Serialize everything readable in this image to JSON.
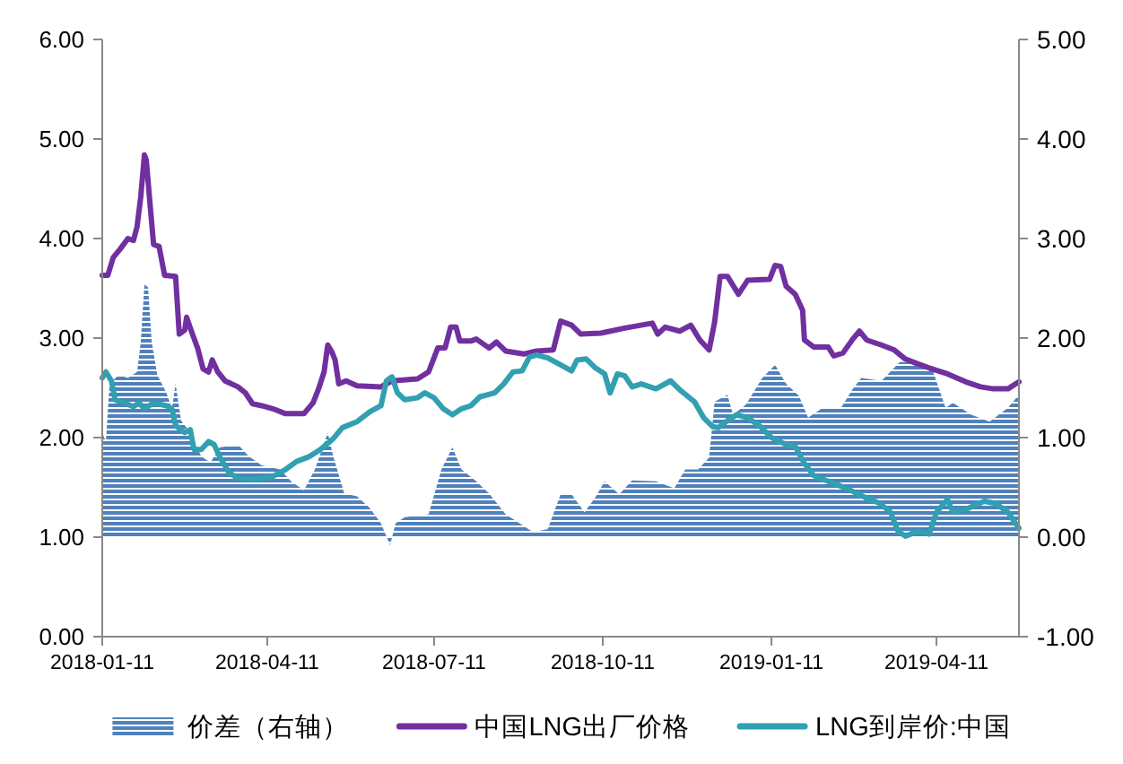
{
  "chart_data": {
    "type": "line",
    "legend": "bottom",
    "xlim": [
      "2018-01-11",
      "2019-05-26"
    ],
    "xticks": [
      "2018-01-11",
      "2018-04-11",
      "2018-07-11",
      "2018-10-11",
      "2019-01-11",
      "2019-04-11"
    ],
    "ylim": [
      0,
      6
    ],
    "yticks": [
      {
        "value": 0,
        "label": "0.00"
      },
      {
        "value": 1,
        "label": "1.00"
      },
      {
        "value": 2,
        "label": "2.00"
      },
      {
        "value": 3,
        "label": "3.00"
      },
      {
        "value": 4,
        "label": "4.00"
      },
      {
        "value": 5,
        "label": "5.00"
      },
      {
        "value": 6,
        "label": "6.00"
      }
    ],
    "y2lim": [
      -1,
      5
    ],
    "y2ticks": [
      {
        "value": -1,
        "label": "-1.00"
      },
      {
        "value": 0,
        "label": "0.00"
      },
      {
        "value": 1,
        "label": "1.00"
      },
      {
        "value": 2,
        "label": "2.00"
      },
      {
        "value": 3,
        "label": "3.00"
      },
      {
        "value": 4,
        "label": "4.00"
      },
      {
        "value": 5,
        "label": "5.00"
      }
    ],
    "series": [
      {
        "name": "价差（右轴）",
        "type": "area",
        "axis": "y2",
        "color": "#4f81bd",
        "x": [
          "2018-01-11",
          "2018-01-13",
          "2018-01-15",
          "2018-01-20",
          "2018-01-25",
          "2018-01-30",
          "2018-02-01",
          "2018-02-03",
          "2018-02-05",
          "2018-02-07",
          "2018-02-10",
          "2018-02-15",
          "2018-02-18",
          "2018-02-20",
          "2018-02-23",
          "2018-02-28",
          "2018-03-06",
          "2018-03-11",
          "2018-03-16",
          "2018-03-26",
          "2018-04-01",
          "2018-04-08",
          "2018-04-18",
          "2018-04-24",
          "2018-05-01",
          "2018-05-07",
          "2018-05-14",
          "2018-05-17",
          "2018-05-23",
          "2018-05-30",
          "2018-06-06",
          "2018-06-12",
          "2018-06-17",
          "2018-06-20",
          "2018-06-25",
          "2018-07-08",
          "2018-07-15",
          "2018-07-21",
          "2018-07-26",
          "2018-08-03",
          "2018-08-10",
          "2018-08-19",
          "2018-08-29",
          "2018-09-03",
          "2018-09-11",
          "2018-09-18",
          "2018-09-24",
          "2018-10-01",
          "2018-10-07",
          "2018-10-12",
          "2018-10-20",
          "2018-10-27",
          "2018-11-09",
          "2018-11-19",
          "2018-11-25",
          "2018-12-02",
          "2018-12-08",
          "2018-12-11",
          "2018-12-18",
          "2018-12-21",
          "2018-12-28",
          "2019-01-06",
          "2019-01-13",
          "2019-01-19",
          "2019-01-26",
          "2019-01-31",
          "2019-02-08",
          "2019-02-18",
          "2019-02-24",
          "2019-03-01",
          "2019-03-12",
          "2019-03-22",
          "2019-04-01",
          "2019-04-09",
          "2019-04-16",
          "2019-04-20",
          "2019-04-30",
          "2019-05-10",
          "2019-05-20",
          "2019-05-26"
        ],
        "values": [
          1.05,
          0.96,
          1.54,
          1.63,
          1.6,
          1.66,
          1.96,
          2.54,
          2.51,
          1.96,
          1.63,
          1.45,
          1.29,
          1.54,
          1.17,
          1.05,
          0.81,
          0.75,
          0.9,
          0.93,
          0.81,
          0.72,
          0.68,
          0.56,
          0.47,
          0.68,
          1.05,
          0.81,
          0.44,
          0.41,
          0.29,
          0.14,
          -0.08,
          0.14,
          0.2,
          0.23,
          0.68,
          0.9,
          0.68,
          0.56,
          0.44,
          0.23,
          0.11,
          0.05,
          0.08,
          0.43,
          0.43,
          0.25,
          0.4,
          0.56,
          0.43,
          0.57,
          0.56,
          0.49,
          0.68,
          0.68,
          0.8,
          1.36,
          1.43,
          1.23,
          1.33,
          1.6,
          1.73,
          1.54,
          1.42,
          1.2,
          1.3,
          1.3,
          1.48,
          1.6,
          1.57,
          1.76,
          1.76,
          1.67,
          1.3,
          1.35,
          1.23,
          1.16,
          1.3,
          1.43
        ]
      },
      {
        "name": "中国LNG出厂价格",
        "color": "#7030a0",
        "x": [
          "2018-01-11",
          "2018-01-14",
          "2018-01-17",
          "2018-01-21",
          "2018-01-25",
          "2018-01-28",
          "2018-01-30",
          "2018-02-01",
          "2018-02-03",
          "2018-02-04",
          "2018-02-06",
          "2018-02-08",
          "2018-02-11",
          "2018-02-14",
          "2018-02-20",
          "2018-02-22",
          "2018-02-25",
          "2018-02-26",
          "2018-03-01",
          "2018-03-04",
          "2018-03-07",
          "2018-03-10",
          "2018-03-12",
          "2018-03-15",
          "2018-03-19",
          "2018-03-26",
          "2018-03-30",
          "2018-04-03",
          "2018-04-08",
          "2018-04-14",
          "2018-04-21",
          "2018-05-01",
          "2018-05-06",
          "2018-05-09",
          "2018-05-12",
          "2018-05-14",
          "2018-05-16",
          "2018-05-18",
          "2018-05-20",
          "2018-05-24",
          "2018-05-30",
          "2018-06-12",
          "2018-06-18",
          "2018-07-02",
          "2018-07-08",
          "2018-07-13",
          "2018-07-17",
          "2018-07-20",
          "2018-07-23",
          "2018-07-25",
          "2018-07-31",
          "2018-08-03",
          "2018-08-10",
          "2018-08-14",
          "2018-08-19",
          "2018-08-29",
          "2018-09-05",
          "2018-09-14",
          "2018-09-18",
          "2018-09-24",
          "2018-09-29",
          "2018-10-10",
          "2018-10-23",
          "2018-11-07",
          "2018-11-10",
          "2018-11-14",
          "2018-11-22",
          "2018-11-28",
          "2018-12-03",
          "2018-12-08",
          "2018-12-11",
          "2018-12-14",
          "2018-12-18",
          "2018-12-24",
          "2018-12-29",
          "2019-01-10",
          "2019-01-13",
          "2019-01-16",
          "2019-01-19",
          "2019-01-24",
          "2019-01-28",
          "2019-01-29",
          "2019-02-03",
          "2019-02-11",
          "2019-02-14",
          "2019-02-19",
          "2019-02-24",
          "2019-02-28",
          "2019-03-04",
          "2019-03-12",
          "2019-03-19",
          "2019-03-25",
          "2019-04-01",
          "2019-04-07",
          "2019-04-17",
          "2019-04-27",
          "2019-05-05",
          "2019-05-12",
          "2019-05-20",
          "2019-05-26"
        ],
        "values": [
          3.63,
          3.63,
          3.81,
          3.9,
          4.0,
          3.98,
          4.12,
          4.42,
          4.84,
          4.79,
          4.36,
          3.94,
          3.92,
          3.63,
          3.62,
          3.04,
          3.08,
          3.21,
          3.05,
          2.9,
          2.69,
          2.66,
          2.78,
          2.66,
          2.57,
          2.51,
          2.45,
          2.34,
          2.32,
          2.29,
          2.24,
          2.24,
          2.35,
          2.49,
          2.66,
          2.93,
          2.87,
          2.78,
          2.54,
          2.57,
          2.52,
          2.51,
          2.57,
          2.59,
          2.66,
          2.9,
          2.9,
          3.11,
          3.11,
          2.97,
          2.97,
          2.99,
          2.9,
          2.96,
          2.87,
          2.84,
          2.87,
          2.88,
          3.17,
          3.13,
          3.04,
          3.05,
          3.1,
          3.15,
          3.04,
          3.11,
          3.07,
          3.13,
          2.98,
          2.88,
          3.16,
          3.62,
          3.62,
          3.44,
          3.58,
          3.59,
          3.73,
          3.72,
          3.52,
          3.44,
          3.28,
          2.98,
          2.91,
          2.91,
          2.82,
          2.85,
          2.98,
          3.07,
          2.98,
          2.93,
          2.88,
          2.79,
          2.74,
          2.7,
          2.64,
          2.56,
          2.51,
          2.49,
          2.49,
          2.56
        ]
      },
      {
        "name": "LNG到岸价:中国",
        "color": "#31a0b0",
        "x": [
          "2018-01-11",
          "2018-01-13",
          "2018-01-16",
          "2018-01-18",
          "2018-01-23",
          "2018-01-28",
          "2018-01-31",
          "2018-02-03",
          "2018-02-08",
          "2018-02-15",
          "2018-02-18",
          "2018-02-20",
          "2018-02-25",
          "2018-02-28",
          "2018-03-02",
          "2018-03-06",
          "2018-03-10",
          "2018-03-13",
          "2018-03-16",
          "2018-03-21",
          "2018-03-26",
          "2018-04-01",
          "2018-04-08",
          "2018-04-14",
          "2018-04-21",
          "2018-04-27",
          "2018-05-04",
          "2018-05-10",
          "2018-05-17",
          "2018-05-22",
          "2018-05-30",
          "2018-06-06",
          "2018-06-12",
          "2018-06-15",
          "2018-06-18",
          "2018-06-21",
          "2018-06-25",
          "2018-07-02",
          "2018-07-06",
          "2018-07-11",
          "2018-07-16",
          "2018-07-21",
          "2018-07-26",
          "2018-07-31",
          "2018-08-05",
          "2018-08-13",
          "2018-08-18",
          "2018-08-23",
          "2018-08-28",
          "2018-09-01",
          "2018-09-05",
          "2018-09-11",
          "2018-09-18",
          "2018-09-24",
          "2018-09-27",
          "2018-10-02",
          "2018-10-07",
          "2018-10-12",
          "2018-10-15",
          "2018-10-19",
          "2018-10-23",
          "2018-10-27",
          "2018-11-01",
          "2018-11-09",
          "2018-11-17",
          "2018-11-22",
          "2018-11-30",
          "2018-12-05",
          "2018-12-10",
          "2018-12-13",
          "2018-12-18",
          "2018-12-23",
          "2018-12-29",
          "2019-01-05",
          "2019-01-11",
          "2019-01-19",
          "2019-01-24",
          "2019-01-29",
          "2019-02-03",
          "2019-02-11",
          "2019-02-21",
          "2019-03-03",
          "2019-03-11",
          "2019-03-17",
          "2019-03-21",
          "2019-03-25",
          "2019-04-01",
          "2019-04-07",
          "2019-04-11",
          "2019-04-17",
          "2019-04-20",
          "2019-04-27",
          "2019-05-07",
          "2019-05-13",
          "2019-05-20",
          "2019-05-26"
        ],
        "values": [
          2.6,
          2.66,
          2.57,
          2.38,
          2.35,
          2.31,
          2.35,
          2.29,
          2.35,
          2.32,
          2.29,
          2.12,
          2.05,
          2.08,
          1.88,
          1.88,
          1.96,
          1.93,
          1.81,
          1.65,
          1.59,
          1.58,
          1.59,
          1.61,
          1.68,
          1.76,
          1.81,
          1.88,
          1.99,
          2.1,
          2.16,
          2.26,
          2.32,
          2.57,
          2.61,
          2.45,
          2.38,
          2.4,
          2.45,
          2.4,
          2.29,
          2.23,
          2.29,
          2.32,
          2.41,
          2.45,
          2.54,
          2.66,
          2.67,
          2.81,
          2.83,
          2.8,
          2.73,
          2.67,
          2.78,
          2.79,
          2.7,
          2.64,
          2.45,
          2.64,
          2.62,
          2.51,
          2.54,
          2.49,
          2.57,
          2.48,
          2.36,
          2.2,
          2.11,
          2.1,
          2.17,
          2.23,
          2.2,
          2.11,
          2.0,
          1.93,
          1.91,
          1.74,
          1.62,
          1.56,
          1.49,
          1.4,
          1.34,
          1.25,
          1.06,
          1.01,
          1.06,
          1.03,
          1.25,
          1.38,
          1.25,
          1.28,
          1.36,
          1.34,
          1.25,
          1.09
        ]
      }
    ]
  }
}
